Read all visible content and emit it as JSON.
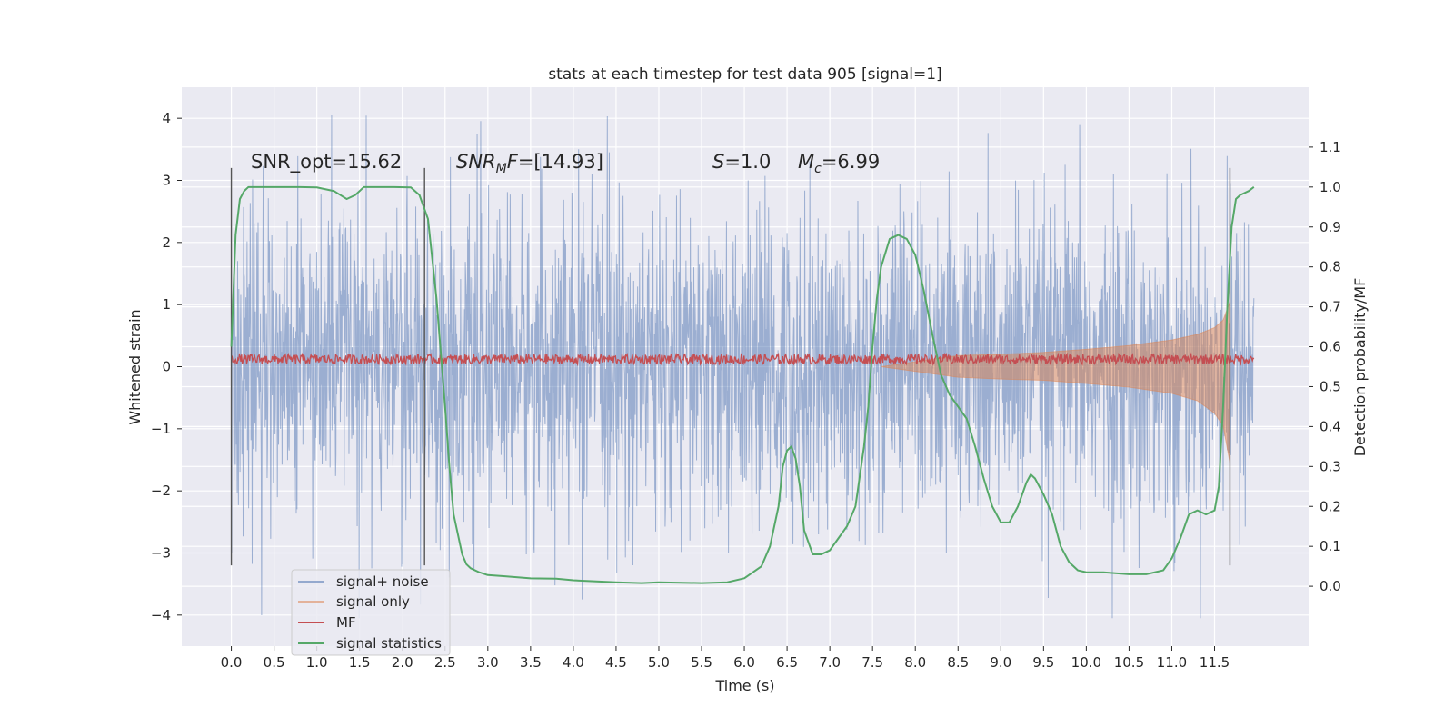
{
  "chart_data": {
    "type": "line",
    "title": "stats at each timestep for test data 905 [signal=1]",
    "xlabel": "Time (s)",
    "ylabel_left": "Whitened strain",
    "ylabel_right": "Detection probability/MF",
    "xlim": [
      -0.58,
      12.6
    ],
    "ylim_left": [
      -4.5,
      4.5
    ],
    "ylim_right": [
      -0.15,
      1.25
    ],
    "x_ticks": [
      "0.0",
      "0.5",
      "1.0",
      "1.5",
      "2.0",
      "2.5",
      "3.0",
      "3.5",
      "4.0",
      "4.5",
      "5.0",
      "5.5",
      "6.0",
      "6.5",
      "7.0",
      "7.5",
      "8.0",
      "8.5",
      "9.0",
      "9.5",
      "10.0",
      "10.5",
      "11.0",
      "11.5"
    ],
    "y_ticks_left": [
      "4",
      "3",
      "2",
      "1",
      "0",
      "−1",
      "−2",
      "−3",
      "−4"
    ],
    "y_ticks_right": [
      "0.0",
      "0.1",
      "0.2",
      "0.3",
      "0.4",
      "0.5",
      "0.6",
      "0.7",
      "0.8",
      "0.9",
      "1.0",
      "1.1"
    ],
    "grid": true,
    "background": "#eaeaf2",
    "legend_position": "lower-left",
    "annotations": {
      "snr_opt": "SNR_opt=15.62",
      "snr_mf_main": "SNR",
      "snr_mf_sub": "M",
      "snr_mf_tail": "F",
      "snr_mf_value": "=[14.93]",
      "s_label": "S",
      "s_value": "=1.0",
      "mc_label": "M",
      "mc_sub": "c",
      "mc_value": "=6.99"
    },
    "vertical_markers": [
      0.0,
      2.26,
      11.68
    ],
    "series": [
      {
        "name": "signal+ noise",
        "color": "#4c72b0",
        "axis": "left",
        "envelope": {
          "t_start": 0.0,
          "t_end": 11.96,
          "typical_amplitude": 2.0,
          "max_peak": 4.05,
          "min_trough": -4.05
        }
      },
      {
        "name": "signal only",
        "color": "#dd8452",
        "axis": "left",
        "chirp_envelope": {
          "x": [
            7.6,
            8.5,
            9.0,
            9.5,
            10.0,
            10.5,
            11.0,
            11.3,
            11.5,
            11.6,
            11.68
          ],
          "upper": [
            0.0,
            0.18,
            0.2,
            0.23,
            0.28,
            0.34,
            0.43,
            0.52,
            0.63,
            0.75,
            1.05
          ],
          "lower": [
            0.0,
            -0.17,
            -0.2,
            -0.22,
            -0.27,
            -0.33,
            -0.43,
            -0.55,
            -0.75,
            -0.95,
            -1.55
          ]
        }
      },
      {
        "name": "MF",
        "color": "#c44e52",
        "axis": "left",
        "level": 0.12,
        "spread": 0.08,
        "t_start": 0.0,
        "t_end": 11.96
      },
      {
        "name": "signal statistics",
        "color": "#55a868",
        "axis": "right",
        "x": [
          0.0,
          0.05,
          0.1,
          0.15,
          0.2,
          0.3,
          0.5,
          0.8,
          1.0,
          1.2,
          1.35,
          1.45,
          1.55,
          1.7,
          1.9,
          2.1,
          2.2,
          2.3,
          2.4,
          2.5,
          2.55,
          2.6,
          2.7,
          2.75,
          2.8,
          2.9,
          3.0,
          3.2,
          3.5,
          3.8,
          4.0,
          4.5,
          4.8,
          5.0,
          5.2,
          5.5,
          5.8,
          6.0,
          6.2,
          6.3,
          6.4,
          6.45,
          6.5,
          6.55,
          6.6,
          6.65,
          6.7,
          6.8,
          6.9,
          7.0,
          7.1,
          7.2,
          7.3,
          7.4,
          7.45,
          7.5,
          7.55,
          7.6,
          7.7,
          7.8,
          7.9,
          8.0,
          8.1,
          8.2,
          8.3,
          8.4,
          8.5,
          8.6,
          8.7,
          8.8,
          8.9,
          9.0,
          9.1,
          9.2,
          9.3,
          9.35,
          9.4,
          9.5,
          9.6,
          9.7,
          9.8,
          9.9,
          10.0,
          10.2,
          10.5,
          10.7,
          10.8,
          10.9,
          11.0,
          11.1,
          11.2,
          11.3,
          11.4,
          11.5,
          11.55,
          11.6,
          11.65,
          11.7,
          11.75,
          11.8,
          11.9,
          11.96
        ],
        "y": [
          0.6,
          0.88,
          0.97,
          0.99,
          1.0,
          1.0,
          1.0,
          1.0,
          0.999,
          0.99,
          0.97,
          0.98,
          1.0,
          1.0,
          1.0,
          0.999,
          0.98,
          0.92,
          0.72,
          0.45,
          0.3,
          0.18,
          0.08,
          0.055,
          0.045,
          0.035,
          0.028,
          0.025,
          0.02,
          0.019,
          0.015,
          0.01,
          0.008,
          0.01,
          0.009,
          0.008,
          0.01,
          0.02,
          0.05,
          0.1,
          0.2,
          0.3,
          0.34,
          0.35,
          0.32,
          0.25,
          0.14,
          0.08,
          0.08,
          0.09,
          0.12,
          0.15,
          0.2,
          0.35,
          0.45,
          0.6,
          0.72,
          0.8,
          0.87,
          0.88,
          0.87,
          0.83,
          0.74,
          0.63,
          0.53,
          0.48,
          0.45,
          0.42,
          0.35,
          0.27,
          0.2,
          0.16,
          0.16,
          0.2,
          0.26,
          0.28,
          0.27,
          0.23,
          0.18,
          0.1,
          0.06,
          0.04,
          0.035,
          0.035,
          0.03,
          0.03,
          0.035,
          0.04,
          0.07,
          0.12,
          0.18,
          0.19,
          0.18,
          0.19,
          0.25,
          0.45,
          0.7,
          0.9,
          0.97,
          0.98,
          0.99,
          1.0
        ]
      }
    ]
  }
}
